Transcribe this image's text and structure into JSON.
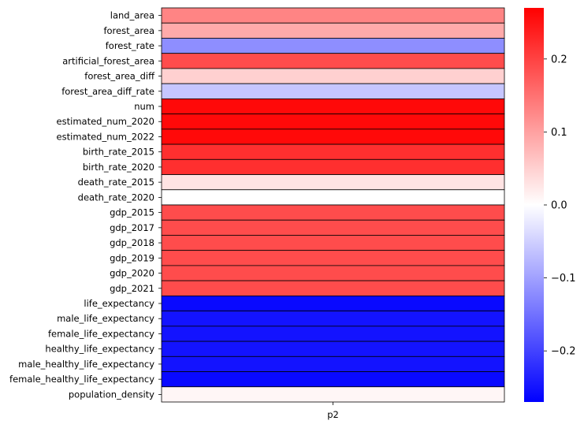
{
  "chart_data": {
    "type": "heatmap",
    "title": "",
    "xlabel": "",
    "ylabel": "",
    "columns": [
      "p2"
    ],
    "rows": [
      "land_area",
      "forest_area",
      "forest_rate",
      "artificial_forest_area",
      "forest_area_diff",
      "forest_area_diff_rate",
      "num",
      "estimated_num_2020",
      "estimated_num_2022",
      "birth_rate_2015",
      "birth_rate_2020",
      "death_rate_2015",
      "death_rate_2020",
      "gdp_2015",
      "gdp_2017",
      "gdp_2018",
      "gdp_2019",
      "gdp_2020",
      "gdp_2021",
      "life_expectancy",
      "male_life_expectancy",
      "female_life_expectancy",
      "healthy_life_expectancy",
      "male_healthy_life_expectancy",
      "female_healthy_life_expectancy",
      "population_density"
    ],
    "values": [
      0.13,
      0.09,
      -0.12,
      0.19,
      0.05,
      -0.06,
      0.26,
      0.26,
      0.26,
      0.22,
      0.22,
      0.03,
      0.0,
      0.19,
      0.19,
      0.19,
      0.19,
      0.19,
      0.19,
      -0.26,
      -0.25,
      -0.25,
      -0.25,
      -0.25,
      -0.26,
      0.01
    ],
    "colormap": "bwr",
    "vmin": -0.27,
    "vmax": 0.27,
    "colorbar_ticks": [
      0.2,
      0.1,
      0.0,
      -0.1,
      -0.2
    ],
    "colorbar_tick_labels": [
      "0.2",
      "0.1",
      "0.0",
      "−0.1",
      "−0.2"
    ],
    "cell_border_color": "#000000"
  }
}
